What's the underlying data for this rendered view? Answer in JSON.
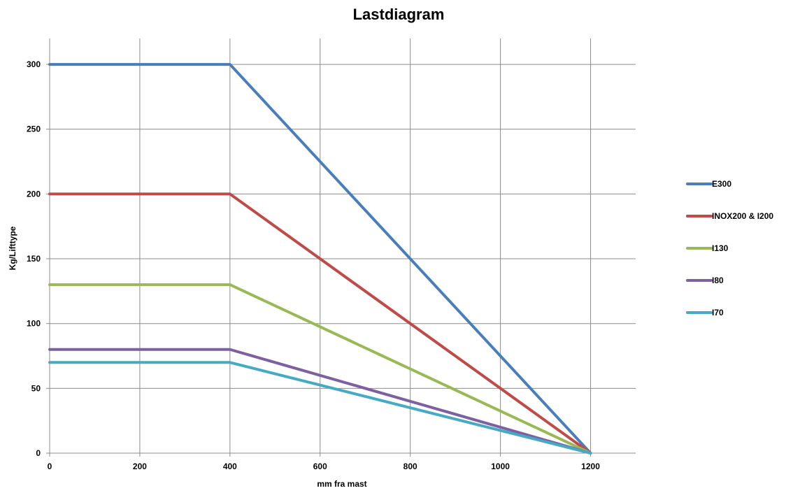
{
  "chart_data": {
    "type": "line",
    "title": "Lastdiagram",
    "xlabel": "mm fra mast",
    "ylabel": "Kg/Lifttype",
    "xlim": [
      0,
      1300
    ],
    "ylim": [
      0,
      320
    ],
    "xticks": [
      0,
      200,
      400,
      600,
      800,
      1000,
      1200
    ],
    "yticks": [
      0,
      50,
      100,
      150,
      200,
      250,
      300
    ],
    "grid": true,
    "legend_position": "right",
    "series": [
      {
        "name": "E300",
        "color": "#4a7ebb",
        "x": [
          0,
          400,
          1200
        ],
        "y": [
          300,
          300,
          0
        ]
      },
      {
        "name": "INOX200 & I200",
        "color": "#be4b48",
        "x": [
          0,
          400,
          1200
        ],
        "y": [
          200,
          200,
          0
        ]
      },
      {
        "name": "I130",
        "color": "#98b954",
        "x": [
          0,
          400,
          1200
        ],
        "y": [
          130,
          130,
          0
        ]
      },
      {
        "name": "I80",
        "color": "#7d60a0",
        "x": [
          0,
          400,
          1200
        ],
        "y": [
          80,
          80,
          0
        ]
      },
      {
        "name": "I70",
        "color": "#46aac5",
        "x": [
          0,
          400,
          1200
        ],
        "y": [
          70,
          70,
          0
        ]
      }
    ]
  }
}
